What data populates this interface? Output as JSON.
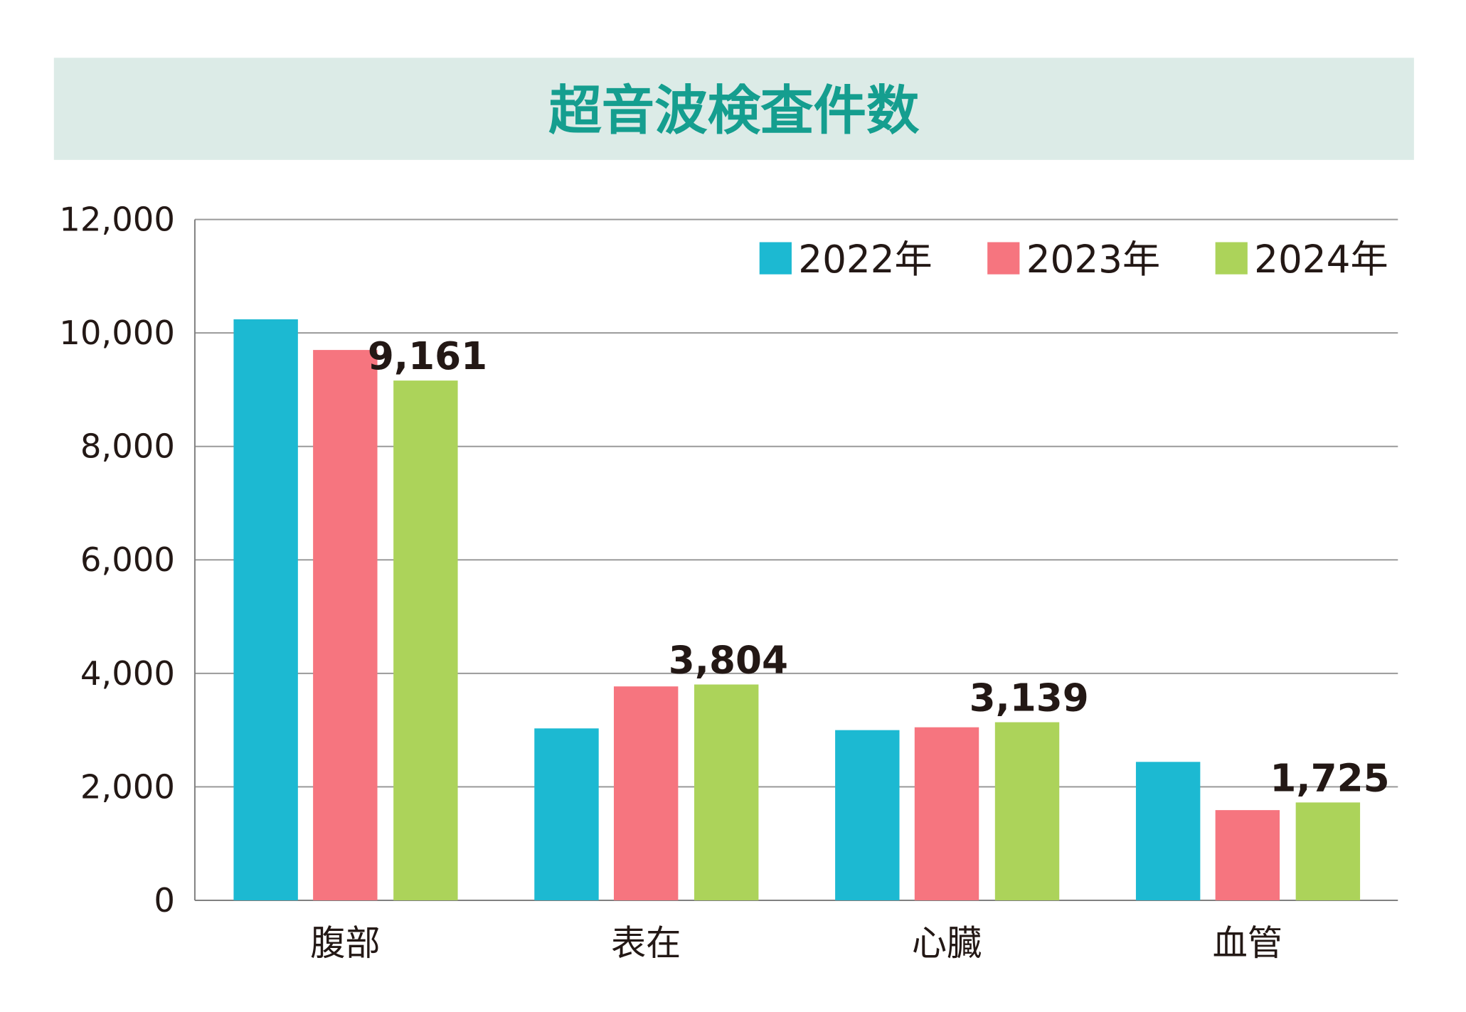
{
  "chart_data": {
    "type": "bar",
    "title": "超音波検査件数",
    "xlabel": "",
    "ylabel": "",
    "ylim": [
      0,
      12000
    ],
    "yticks": [
      0,
      2000,
      4000,
      6000,
      8000,
      10000,
      12000
    ],
    "ytick_labels": [
      "0",
      "2,000",
      "4,000",
      "6,000",
      "8,000",
      "10,000",
      "12,000"
    ],
    "grid": true,
    "legend_position": "top-right",
    "categories": [
      "腹部",
      "表在",
      "心臓",
      "血管"
    ],
    "series": [
      {
        "name": "2022年",
        "color": "#1cb9d2",
        "values": [
          10240,
          3030,
          3000,
          2440
        ],
        "show_labels": false
      },
      {
        "name": "2023年",
        "color": "#f6757f",
        "values": [
          9700,
          3770,
          3050,
          1590
        ],
        "show_labels": false
      },
      {
        "name": "2024年",
        "color": "#acd35a",
        "values": [
          9161,
          3804,
          3139,
          1725
        ],
        "show_labels": true
      }
    ],
    "data_labels": [
      "9,161",
      "3,804",
      "3,139",
      "1,725"
    ]
  },
  "colors": {
    "title_band": "#dcebe7",
    "title_text": "#159e8f",
    "grid": "#9a9a9a",
    "axis": "#808080"
  }
}
